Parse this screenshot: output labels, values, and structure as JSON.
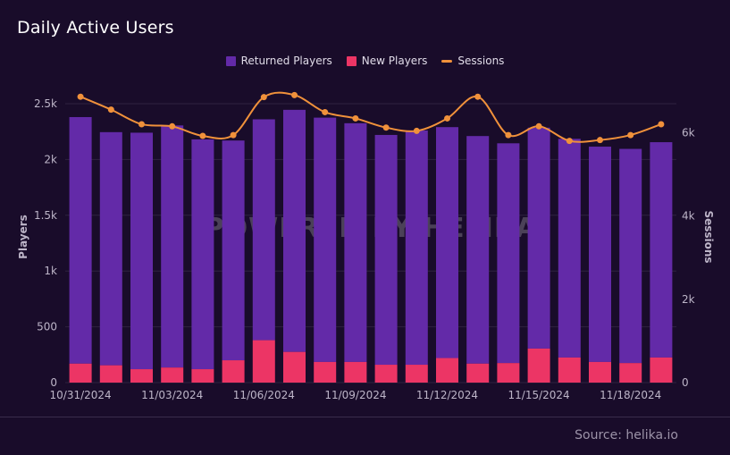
{
  "header": {
    "title": "Daily Active Users"
  },
  "footer": {
    "source": "Source: helika.io"
  },
  "watermark": {
    "text": "POWERED BY HELIKA"
  },
  "colors": {
    "background": "#190c2a",
    "returned": "#632aa8",
    "new": "#ec3565",
    "sessions": "#f0913b",
    "axis_text": "#bdb5c8",
    "grid": "#2f2240"
  },
  "chart_data": {
    "type": "bar",
    "stacked": true,
    "xlabel": "",
    "ylabel": "Players",
    "y2label": "Sessions",
    "ylim": [
      0,
      2500
    ],
    "y2lim": [
      0,
      6800
    ],
    "yticks": [
      0,
      500,
      1000,
      1500,
      2000,
      2500
    ],
    "ytick_labels": [
      "0",
      "500",
      "1k",
      "1.5k",
      "2k",
      "2.5k"
    ],
    "y2ticks": [
      0,
      2000,
      4000,
      6000
    ],
    "y2tick_labels": [
      "0",
      "2k",
      "4k",
      "6k"
    ],
    "categories": [
      "10/31/2024",
      "11/01/2024",
      "11/02/2024",
      "11/03/2024",
      "11/04/2024",
      "11/05/2024",
      "11/06/2024",
      "11/07/2024",
      "11/08/2024",
      "11/09/2024",
      "11/10/2024",
      "11/11/2024",
      "11/12/2024",
      "11/13/2024",
      "11/14/2024",
      "11/15/2024",
      "11/16/2024",
      "11/17/2024",
      "11/18/2024",
      "11/19/2024"
    ],
    "shown_tick_labels": [
      "10/31/2024",
      "11/03/2024",
      "11/06/2024",
      "11/09/2024",
      "11/12/2024",
      "11/15/2024",
      "11/18/2024"
    ],
    "series": [
      {
        "name": "Returned Players",
        "kind": "bar",
        "axis": "left",
        "values": [
          2210,
          2090,
          2120,
          2170,
          2060,
          1970,
          1980,
          2170,
          2190,
          2140,
          2060,
          2100,
          2070,
          2040,
          1970,
          1980,
          1960,
          1930,
          1920,
          1930
        ]
      },
      {
        "name": "New Players",
        "kind": "bar",
        "axis": "left",
        "values": [
          170,
          155,
          120,
          135,
          120,
          200,
          380,
          275,
          185,
          185,
          160,
          160,
          220,
          170,
          175,
          305,
          225,
          185,
          175,
          225
        ]
      },
      {
        "name": "Sessions",
        "kind": "line",
        "axis": "right",
        "values": [
          6860,
          6550,
          6200,
          6150,
          5920,
          5940,
          6850,
          6900,
          6490,
          6340,
          6120,
          6040,
          6340,
          6860,
          5940,
          6150,
          5800,
          5820,
          5940,
          6200
        ]
      }
    ],
    "legend_position": "top-center",
    "grid": "horizontal"
  }
}
